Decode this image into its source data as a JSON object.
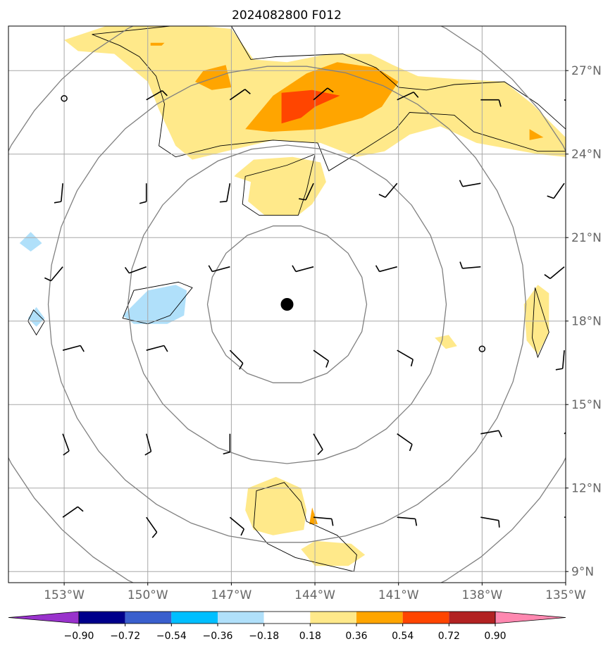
{
  "chart_data": {
    "type": "heatmap",
    "title": "2024082800 F012",
    "x_ticks": [
      "153°W",
      "150°W",
      "147°W",
      "144°W",
      "141°W",
      "138°W",
      "135°W"
    ],
    "y_ticks": [
      "27°N",
      "24°N",
      "21°N",
      "18°N",
      "15°N",
      "12°N",
      "9°N"
    ],
    "x_tick_values": [
      -153,
      -150,
      -147,
      -144,
      -141,
      -138,
      -135
    ],
    "y_tick_values": [
      27,
      24,
      21,
      18,
      15,
      12,
      9
    ],
    "xlim": [
      -155,
      -135
    ],
    "ylim": [
      8.6,
      28.6
    ],
    "grid": true,
    "storm_center": {
      "lon": -145.0,
      "lat": 18.6
    },
    "range_rings": 4,
    "colorbar": {
      "ticks": [
        "−0.90",
        "−0.72",
        "−0.54",
        "−0.36",
        "−0.18",
        "0.18",
        "0.36",
        "0.54",
        "0.72",
        "0.90"
      ],
      "levels": [
        -0.9,
        -0.72,
        -0.54,
        -0.36,
        -0.18,
        0.18,
        0.36,
        0.54,
        0.72,
        0.9
      ],
      "colors": [
        "#9932cc",
        "#00008b",
        "#3a5fcd",
        "#00bfff",
        "#b0e0fa",
        "#ffffff",
        "#ffe98a",
        "#ffa500",
        "#ff4500",
        "#b22222",
        "#ff88b0"
      ],
      "extend": "both"
    },
    "filled_regions": [
      {
        "level": 0.18,
        "color": "#ffe98a",
        "lonlat": [
          [
            -153.0,
            28.1
          ],
          [
            -151.5,
            28.6
          ],
          [
            -149.0,
            28.7
          ],
          [
            -147.0,
            28.5
          ],
          [
            -146.2,
            27.4
          ],
          [
            -145.0,
            27.3
          ],
          [
            -143.5,
            27.6
          ],
          [
            -142.0,
            27.6
          ],
          [
            -141.2,
            27.2
          ],
          [
            -140.3,
            26.8
          ],
          [
            -139.0,
            26.7
          ],
          [
            -137.2,
            26.6
          ],
          [
            -136.2,
            25.8
          ],
          [
            -135.0,
            24.6
          ],
          [
            -135.0,
            23.9
          ],
          [
            -136.0,
            24.0
          ],
          [
            -138.2,
            24.4
          ],
          [
            -139.5,
            25.0
          ],
          [
            -140.6,
            24.7
          ],
          [
            -141.5,
            24.1
          ],
          [
            -142.5,
            23.9
          ],
          [
            -143.8,
            24.4
          ],
          [
            -145.5,
            24.5
          ],
          [
            -147.2,
            24.1
          ],
          [
            -148.4,
            23.8
          ],
          [
            -149.0,
            24.3
          ],
          [
            -149.6,
            25.6
          ],
          [
            -150.0,
            26.6
          ],
          [
            -151.2,
            27.6
          ],
          [
            -152.5,
            27.7
          ]
        ]
      },
      {
        "level": 0.18,
        "color": "#ffe98a",
        "lonlat": [
          [
            -146.8,
            23.3
          ],
          [
            -146.2,
            23.8
          ],
          [
            -144.8,
            23.9
          ],
          [
            -143.8,
            23.7
          ],
          [
            -143.6,
            23.0
          ],
          [
            -144.1,
            22.2
          ],
          [
            -144.6,
            21.8
          ],
          [
            -145.8,
            21.8
          ],
          [
            -146.4,
            22.3
          ],
          [
            -146.3,
            23.0
          ],
          [
            -146.9,
            23.2
          ]
        ]
      },
      {
        "level": 0.18,
        "color": "#ffe98a",
        "lonlat": [
          [
            -136.0,
            19.3
          ],
          [
            -135.6,
            19.0
          ],
          [
            -135.6,
            17.6
          ],
          [
            -136.0,
            16.8
          ],
          [
            -136.4,
            17.3
          ],
          [
            -136.5,
            18.6
          ]
        ]
      },
      {
        "level": 0.18,
        "color": "#ffe98a",
        "lonlat": [
          [
            -139.7,
            17.4
          ],
          [
            -139.3,
            17.0
          ],
          [
            -138.9,
            17.1
          ],
          [
            -139.2,
            17.5
          ]
        ]
      },
      {
        "level": 0.18,
        "color": "#ffe98a",
        "lonlat": [
          [
            -146.4,
            12.0
          ],
          [
            -145.4,
            12.4
          ],
          [
            -144.5,
            12.0
          ],
          [
            -144.3,
            11.2
          ],
          [
            -144.4,
            10.5
          ],
          [
            -145.5,
            10.3
          ],
          [
            -146.2,
            10.5
          ],
          [
            -146.5,
            11.2
          ]
        ]
      },
      {
        "level": 0.18,
        "color": "#ffe98a",
        "lonlat": [
          [
            -144.5,
            9.8
          ],
          [
            -144.0,
            10.1
          ],
          [
            -142.7,
            10.0
          ],
          [
            -142.2,
            9.6
          ],
          [
            -142.8,
            9.2
          ],
          [
            -144.0,
            9.2
          ]
        ]
      },
      {
        "level": 0.36,
        "color": "#ffa500",
        "lonlat": [
          [
            -148.0,
            27.0
          ],
          [
            -147.2,
            27.2
          ],
          [
            -147.0,
            26.4
          ],
          [
            -147.7,
            26.3
          ],
          [
            -148.3,
            26.6
          ]
        ]
      },
      {
        "level": 0.36,
        "color": "#ffa500",
        "lonlat": [
          [
            -146.5,
            24.9
          ],
          [
            -145.5,
            26.1
          ],
          [
            -144.3,
            26.9
          ],
          [
            -143.2,
            27.3
          ],
          [
            -141.8,
            27.1
          ],
          [
            -141.0,
            26.6
          ],
          [
            -141.6,
            25.7
          ],
          [
            -142.3,
            25.3
          ],
          [
            -143.8,
            24.9
          ],
          [
            -145.6,
            24.8
          ]
        ]
      },
      {
        "level": 0.36,
        "color": "#ffa500",
        "lonlat": [
          [
            -136.3,
            24.9
          ],
          [
            -135.8,
            24.6
          ],
          [
            -136.3,
            24.5
          ]
        ]
      },
      {
        "level": 0.36,
        "color": "#ffa500",
        "lonlat": [
          [
            -149.9,
            28.0
          ],
          [
            -149.4,
            28.0
          ],
          [
            -149.5,
            27.9
          ],
          [
            -149.9,
            27.9
          ]
        ]
      },
      {
        "level": 0.36,
        "color": "#ffa500",
        "lonlat": [
          [
            -144.1,
            11.3
          ],
          [
            -143.9,
            10.7
          ],
          [
            -144.2,
            10.7
          ]
        ]
      },
      {
        "level": 0.54,
        "color": "#ff4500",
        "lonlat": [
          [
            -145.2,
            25.1
          ],
          [
            -145.2,
            26.2
          ],
          [
            -144.1,
            26.3
          ],
          [
            -143.1,
            26.1
          ],
          [
            -144.0,
            25.7
          ],
          [
            -144.5,
            25.3
          ]
        ]
      },
      {
        "level": -0.18,
        "color": "#b0e0fa",
        "lonlat": [
          [
            -150.9,
            18.2
          ],
          [
            -150.0,
            19.1
          ],
          [
            -149.0,
            19.3
          ],
          [
            -148.6,
            19.1
          ],
          [
            -148.7,
            18.2
          ],
          [
            -149.3,
            17.9
          ],
          [
            -150.5,
            17.9
          ]
        ]
      },
      {
        "level": -0.18,
        "color": "#b0e0fa",
        "lonlat": [
          [
            -154.6,
            20.8
          ],
          [
            -154.2,
            21.2
          ],
          [
            -153.8,
            20.8
          ],
          [
            -154.2,
            20.5
          ]
        ]
      },
      {
        "level": -0.18,
        "color": "#b0e0fa",
        "lonlat": [
          [
            -154.3,
            18.1
          ],
          [
            -154.0,
            18.5
          ],
          [
            -153.7,
            18.1
          ],
          [
            -154.0,
            17.8
          ]
        ]
      }
    ],
    "outline_regions": [
      [
        [
          -152.0,
          28.3
        ],
        [
          -149.2,
          28.6
        ],
        [
          -147.0,
          28.6
        ],
        [
          -146.3,
          27.4
        ],
        [
          -145.4,
          27.5
        ],
        [
          -143.0,
          27.6
        ],
        [
          -141.8,
          27.1
        ],
        [
          -141.0,
          26.4
        ],
        [
          -140.0,
          26.3
        ],
        [
          -139.0,
          26.5
        ],
        [
          -137.2,
          26.6
        ],
        [
          -136.0,
          25.8
        ],
        [
          -135.0,
          24.9
        ],
        [
          -135.0,
          24.1
        ],
        [
          -136.0,
          24.1
        ],
        [
          -138.3,
          24.8
        ],
        [
          -139.0,
          25.4
        ],
        [
          -140.6,
          25.5
        ],
        [
          -141.1,
          24.9
        ],
        [
          -142.2,
          24.2
        ],
        [
          -143.5,
          23.4
        ],
        [
          -143.9,
          24.4
        ],
        [
          -145.5,
          24.5
        ],
        [
          -147.4,
          24.3
        ],
        [
          -149.0,
          23.9
        ],
        [
          -149.6,
          24.3
        ],
        [
          -149.4,
          25.8
        ],
        [
          -149.7,
          26.8
        ],
        [
          -150.3,
          27.5
        ],
        [
          -151.0,
          27.9
        ]
      ],
      [
        [
          -146.6,
          22.2
        ],
        [
          -146.5,
          23.2
        ],
        [
          -145.0,
          23.6
        ],
        [
          -144.0,
          24.0
        ],
        [
          -144.3,
          22.7
        ],
        [
          -144.6,
          21.8
        ],
        [
          -146.0,
          21.8
        ]
      ],
      [
        [
          -150.9,
          18.1
        ],
        [
          -150.5,
          19.1
        ],
        [
          -148.9,
          19.4
        ],
        [
          -148.4,
          19.2
        ],
        [
          -149.2,
          18.2
        ],
        [
          -150.0,
          17.9
        ]
      ],
      [
        [
          -154.1,
          18.4
        ],
        [
          -153.7,
          18.0
        ],
        [
          -154.0,
          17.5
        ],
        [
          -154.3,
          18.0
        ]
      ],
      [
        [
          -136.1,
          19.2
        ],
        [
          -135.6,
          17.6
        ],
        [
          -136.0,
          16.7
        ],
        [
          -136.2,
          17.4
        ]
      ],
      [
        [
          -146.1,
          11.9
        ],
        [
          -145.1,
          12.2
        ],
        [
          -144.5,
          11.5
        ],
        [
          -144.3,
          10.8
        ],
        [
          -143.2,
          10.3
        ],
        [
          -142.5,
          9.6
        ],
        [
          -142.6,
          9.0
        ],
        [
          -144.7,
          9.5
        ],
        [
          -145.7,
          10.0
        ],
        [
          -146.2,
          10.6
        ]
      ]
    ],
    "wind_barbs": {
      "cols_lon": [
        -153,
        -150,
        -147,
        -144,
        -141,
        -138,
        -135
      ],
      "rows_lat": [
        26,
        23,
        20,
        17,
        14,
        11
      ],
      "angles_deg": [
        [
          null,
          -30,
          -35,
          -40,
          -25,
          0,
          15
        ],
        [
          95,
          90,
          100,
          115,
          130,
          170,
          125
        ],
        [
          130,
          160,
          165,
          165,
          165,
          175,
          140
        ],
        [
          -15,
          -15,
          45,
          35,
          30,
          null,
          95
        ],
        [
          70,
          75,
          90,
          60,
          35,
          -10,
          -40
        ],
        [
          -35,
          55,
          40,
          5,
          5,
          10,
          -5
        ]
      ]
    },
    "calm_points": [
      {
        "lon": -153.0,
        "lat": 26.0
      },
      {
        "lon": -138.0,
        "lat": 17.0
      }
    ]
  }
}
